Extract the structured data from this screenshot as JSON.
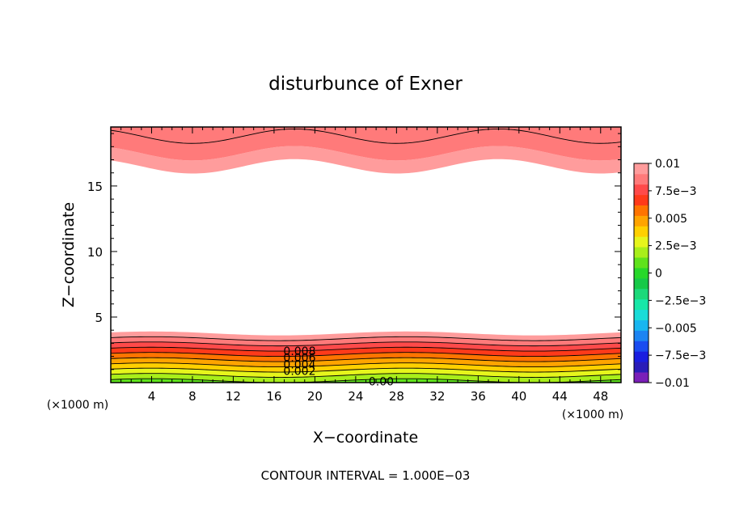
{
  "chart_data": {
    "type": "heatmap",
    "title": "disturbunce of Exner",
    "xlabel": "X−coordinate",
    "ylabel": "Z−coordinate",
    "x_unit_left": "(×1000 m)",
    "x_unit_right": "(×1000 m)",
    "footer": "CONTOUR INTERVAL = 1.000E−03",
    "xlim": [
      0,
      50
    ],
    "ylim": [
      0,
      19.5
    ],
    "x_ticks": [
      4,
      8,
      12,
      16,
      20,
      24,
      28,
      32,
      36,
      40,
      44,
      48
    ],
    "x_tick_labels": [
      "4",
      "8",
      "12",
      "16",
      "20",
      "24",
      "28",
      "32",
      "36",
      "40",
      "44",
      "48"
    ],
    "y_ticks": [
      5,
      10,
      15
    ],
    "y_tick_labels": [
      "5",
      "10",
      "15"
    ],
    "colorbar": {
      "min": -0.01,
      "max": 0.01,
      "levels": [
        -0.01,
        -0.009,
        -0.008,
        -0.007,
        -0.006,
        -0.005,
        -0.004,
        -0.003,
        -0.002,
        -0.001,
        0,
        0.001,
        0.002,
        0.003,
        0.004,
        0.005,
        0.006,
        0.007,
        0.008,
        0.009,
        0.01
      ],
      "colors": [
        "#7a1fb8",
        "#2a1cb8",
        "#1a1ee0",
        "#1a4cf0",
        "#1c84f2",
        "#18b6f0",
        "#19dcd8",
        "#17e7a8",
        "#1bd97a",
        "#16c948",
        "#27d82a",
        "#5fe21c",
        "#a8ee1a",
        "#e6f51c",
        "#ffd000",
        "#ffa400",
        "#ff7400",
        "#ff3a1a",
        "#ff4a4a",
        "#ff7a7a",
        "#ff9c9c"
      ],
      "tick_labels": [
        "0.01",
        "7.5e−3",
        "0.005",
        "2.5e−3",
        "0",
        "−2.5e−3",
        "−0.005",
        "−7.5e−3",
        "−0.01"
      ],
      "tick_values": [
        0.01,
        0.0075,
        0.005,
        0.0025,
        0,
        -0.0025,
        -0.005,
        -0.0075,
        -0.01
      ]
    },
    "contour_labels": [
      {
        "text": "0.008",
        "x": 18.5,
        "z": 2.4
      },
      {
        "text": "0.006",
        "x": 18.5,
        "z": 1.9
      },
      {
        "text": "0.004",
        "x": 18.5,
        "z": 1.4
      },
      {
        "text": "0.002",
        "x": 18.5,
        "z": 0.9
      },
      {
        "text": "0.00",
        "x": 26.5,
        "z": 0.1
      }
    ],
    "bottom_layer": {
      "levels": [
        0.001,
        0.002,
        0.003,
        0.004,
        0.005,
        0.006,
        0.007,
        0.008,
        0.009,
        0.01
      ],
      "level_heights_km": [
        0.15,
        0.55,
        0.95,
        1.35,
        1.75,
        2.15,
        2.55,
        2.95,
        3.35,
        3.75
      ],
      "wave_amplitude_km": 0.15
    },
    "top_layer": {
      "levels": [
        0.009,
        0.01
      ],
      "boundary_heights_km": [
        16.5,
        17.5,
        18.8
      ],
      "wave_amplitude_km": 0.55
    }
  }
}
